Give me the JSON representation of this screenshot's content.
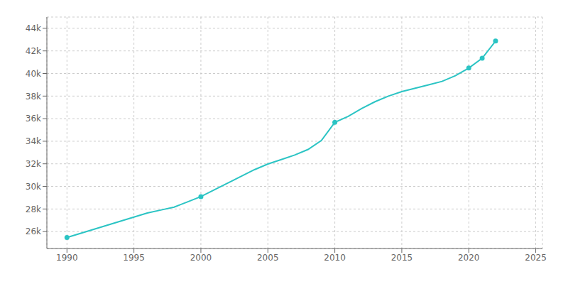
{
  "chart_data": {
    "type": "line",
    "x": [
      1990,
      1991,
      1992,
      1993,
      1994,
      1995,
      1996,
      1997,
      1998,
      1999,
      2000,
      2001,
      2002,
      2003,
      2004,
      2005,
      2006,
      2007,
      2008,
      2009,
      2010,
      2011,
      2012,
      2013,
      2014,
      2015,
      2016,
      2017,
      2018,
      2019,
      2020,
      2021,
      2022
    ],
    "series": [
      {
        "type": "line",
        "color": "#2BC4C4",
        "values": [
          25478,
          25839,
          26200,
          26561,
          26922,
          27283,
          27644,
          27905,
          28166,
          28630,
          29095,
          29692,
          30289,
          30886,
          31483,
          31980,
          32377,
          32774,
          33271,
          34070,
          35670,
          36200,
          36900,
          37500,
          38000,
          38400,
          38700,
          39000,
          39300,
          39800,
          40484,
          41350,
          42874
        ]
      },
      {
        "type": "scatter",
        "color": "#2BC4C4",
        "x": [
          1990,
          2000,
          2010,
          2020,
          2021,
          2022
        ],
        "values": [
          25478,
          29095,
          35670,
          40484,
          41350,
          42874
        ]
      }
    ],
    "xlim": [
      1988.5,
      2025.5
    ],
    "ylim": [
      24500,
      45000
    ],
    "xticks": [
      1990,
      1995,
      2000,
      2005,
      2010,
      2015,
      2020,
      2025
    ],
    "yticks": [
      {
        "value": 26000,
        "label": "26k"
      },
      {
        "value": 28000,
        "label": "28k"
      },
      {
        "value": 30000,
        "label": "30k"
      },
      {
        "value": 32000,
        "label": "32k"
      },
      {
        "value": 34000,
        "label": "34k"
      },
      {
        "value": 36000,
        "label": "36k"
      },
      {
        "value": 38000,
        "label": "38k"
      },
      {
        "value": 40000,
        "label": "40k"
      },
      {
        "value": 42000,
        "label": "42k"
      },
      {
        "value": 44000,
        "label": "44k"
      }
    ],
    "grid": true
  }
}
